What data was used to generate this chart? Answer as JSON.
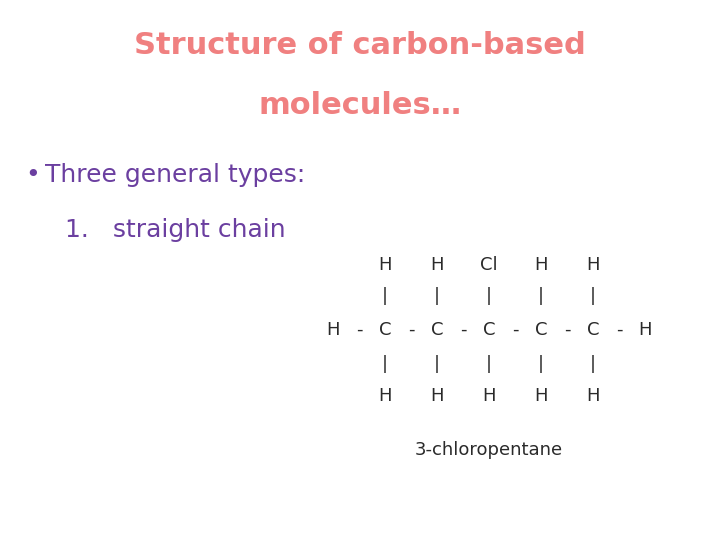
{
  "title_line1": "Structure of carbon-based",
  "title_line2": "molecules…",
  "title_color": "#F08080",
  "bullet_color": "#6B3FA0",
  "molecule_color": "#2a2a2a",
  "bullet_text": "Three general types:",
  "item1_text": "1.   straight chain",
  "molecule_label": "3-chloropentane",
  "bg_color": "#ffffff",
  "title_fontsize": 22,
  "body_fontsize": 18,
  "molecule_fontsize": 13,
  "label_fontsize": 13
}
